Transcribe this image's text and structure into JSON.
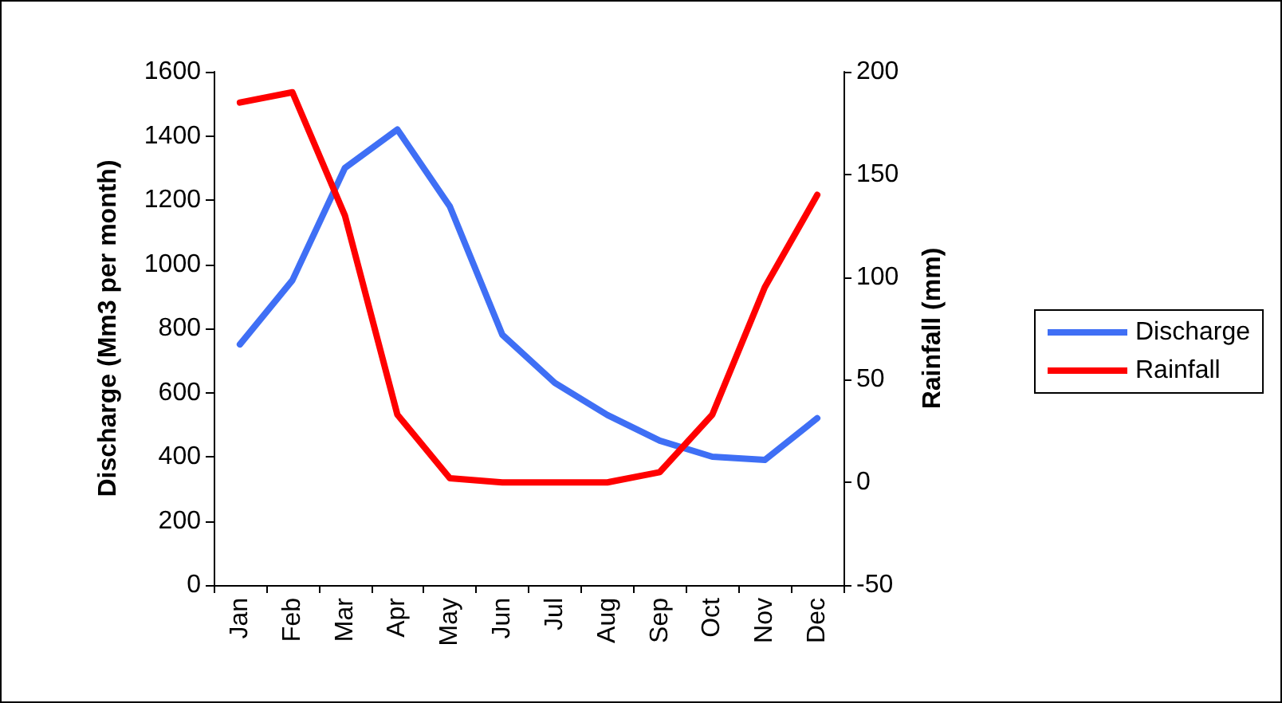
{
  "chart_data": {
    "type": "line",
    "categories": [
      "Jan",
      "Feb",
      "Mar",
      "Apr",
      "May",
      "Jun",
      "Jul",
      "Aug",
      "Sep",
      "Oct",
      "Nov",
      "Dec"
    ],
    "series": [
      {
        "name": "Discharge",
        "color": "#3f6ff5",
        "values": [
          750,
          950,
          1300,
          1420,
          1180,
          780,
          630,
          530,
          450,
          400,
          390,
          520
        ]
      },
      {
        "name": "Rainfall",
        "color": "#ff0000",
        "axis": "y2",
        "values": [
          185,
          190,
          130,
          33,
          2,
          0,
          0,
          0,
          5,
          33,
          95,
          140
        ]
      }
    ],
    "ylabel": "Discharge (Mm3 per month)",
    "y2label": "Rainfall (mm)",
    "ylim": [
      0,
      1600
    ],
    "yticks": [
      0,
      200,
      400,
      600,
      800,
      1000,
      1200,
      1400,
      1600
    ],
    "y2lim": [
      -50,
      200
    ],
    "y2ticks": [
      -50,
      0,
      50,
      100,
      150,
      200
    ],
    "legend": "right",
    "grid": false,
    "marker": "none",
    "line_style": "solid"
  }
}
